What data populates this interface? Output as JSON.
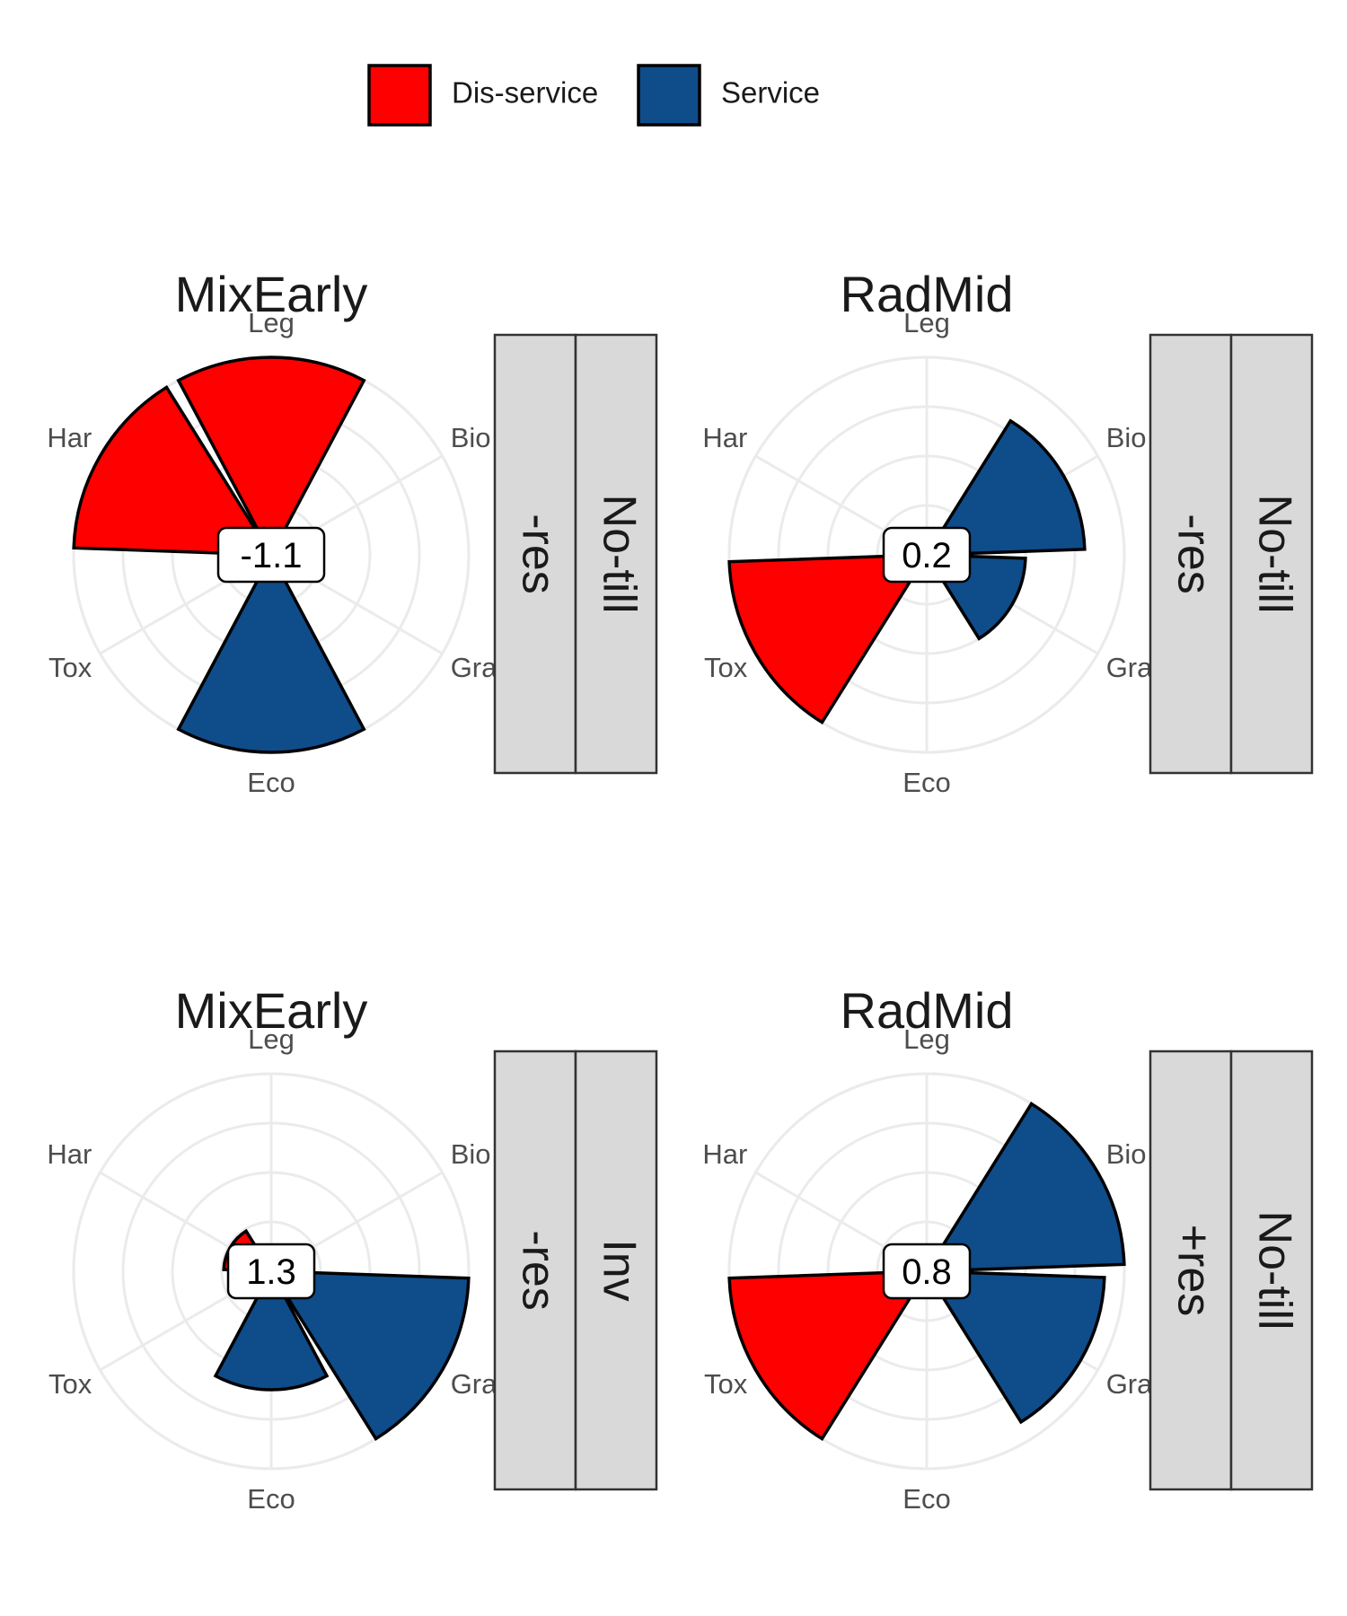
{
  "chart_data": {
    "type": "bar",
    "coord": "polar",
    "categories": [
      "Bio",
      "Gra",
      "Eco",
      "Tox",
      "Har",
      "Leg"
    ],
    "rlim": [
      0,
      5
    ],
    "grid": true,
    "legend": {
      "placement": "top",
      "entries": [
        {
          "label": "Dis-service",
          "color": "#ff0000"
        },
        {
          "label": "Service",
          "color": "#0f4c8a"
        }
      ]
    },
    "panels": [
      {
        "title": "MixEarly",
        "center_label": "-1.1",
        "strips": [
          "-res",
          "No-till"
        ],
        "values": [
          0,
          0,
          5,
          0.6,
          5,
          5
        ],
        "types": [
          "Service",
          "Service",
          "Service",
          "Dis-service",
          "Dis-service",
          "Dis-service"
        ]
      },
      {
        "title": "RadMid",
        "center_label": "0.2",
        "strips": [
          "-res",
          "No-till"
        ],
        "values": [
          4,
          2.5,
          0,
          5,
          0,
          0
        ],
        "types": [
          "Service",
          "Service",
          "Service",
          "Dis-service",
          "Dis-service",
          "Dis-service"
        ]
      },
      {
        "title": "MixEarly",
        "center_label": "1.3",
        "strips": [
          "-res",
          "Inv"
        ],
        "values": [
          0,
          5,
          3,
          0,
          1.2,
          0
        ],
        "types": [
          "Service",
          "Service",
          "Service",
          "Dis-service",
          "Dis-service",
          "Dis-service"
        ]
      },
      {
        "title": "RadMid",
        "center_label": "0.8",
        "strips": [
          "+res",
          "No-till"
        ],
        "values": [
          5,
          4.5,
          0,
          5,
          0,
          0
        ],
        "types": [
          "Service",
          "Service",
          "Service",
          "Dis-service",
          "Dis-service",
          "Dis-service"
        ]
      }
    ]
  }
}
